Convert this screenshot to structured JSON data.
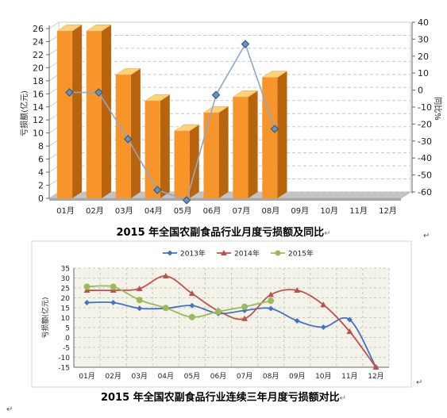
{
  "chart_data": [
    {
      "type": "bar",
      "categories": [
        "01月",
        "02月",
        "03月",
        "04月",
        "05月",
        "06月",
        "07月",
        "08月",
        "09月",
        "10月",
        "11月",
        "12月"
      ],
      "series": [
        {
          "name": "亏损额",
          "type": "bar",
          "axis": "left",
          "values": [
            25.6,
            25.6,
            18.9,
            14.9,
            10.3,
            13.1,
            15.5,
            18.5,
            null,
            null,
            null,
            null
          ]
        },
        {
          "name": "同比",
          "type": "line",
          "axis": "right",
          "values": [
            0.5,
            0.5,
            -27,
            -57,
            -63,
            -1,
            29,
            -21,
            null,
            null,
            null,
            null
          ]
        }
      ],
      "ylabel": "亏损额(亿元)",
      "ylabel_right": "同比%",
      "ylim": [
        0,
        26
      ],
      "yticks": [
        0,
        2,
        4,
        6,
        8,
        10,
        12,
        14,
        16,
        18,
        20,
        22,
        24,
        26
      ],
      "ylim_right": [
        -60,
        40
      ],
      "yticks_right": [
        40,
        30,
        20,
        10,
        0,
        -10,
        -20,
        -30,
        -40,
        -50,
        -60
      ],
      "grid": true,
      "colors": {
        "bar_front": "#F7952B",
        "bar_top": "#FFD27A",
        "bar_side": "#B8640F",
        "line": "#8FA8C8",
        "marker": "#2F5F8F",
        "grid": "#C8C8C8",
        "plot_bg": "#FFFFFF"
      }
    },
    {
      "type": "line",
      "categories": [
        "01月",
        "02月",
        "03月",
        "04月",
        "05月",
        "06月",
        "07月",
        "08月",
        "09月",
        "10月",
        "11月",
        "12月"
      ],
      "series": [
        {
          "name": "2013年",
          "color": "#4472C4",
          "marker": "diamond",
          "values": [
            17.6,
            17.6,
            14.7,
            14.7,
            16.1,
            12.1,
            13.6,
            14.6,
            8.4,
            5.2,
            9.0,
            -15.0
          ]
        },
        {
          "name": "2014年",
          "color": "#C0504D",
          "marker": "triangle",
          "values": [
            23.8,
            23.8,
            24.6,
            31.0,
            22.2,
            13.4,
            9.5,
            21.6,
            23.8,
            16.5,
            3.0,
            -15.0
          ]
        },
        {
          "name": "2015年",
          "color": "#9BBB59",
          "marker": "circle",
          "values": [
            25.6,
            25.6,
            18.9,
            14.9,
            10.3,
            13.1,
            15.5,
            18.5,
            null,
            null,
            null,
            null
          ]
        }
      ],
      "ylabel": "亏损额(亿元)",
      "ylim": [
        -15,
        35
      ],
      "yticks": [
        35,
        30,
        25,
        20,
        15,
        10,
        5,
        0,
        -5,
        -10,
        -15
      ],
      "grid": true,
      "legend": "top-center",
      "colors": {
        "plot_bg": "#F3F3E9",
        "grid": "#C9C9B8"
      }
    }
  ],
  "captions": {
    "chart1": "2015 年全国农副食品行业月度亏损额及同比",
    "chart2": "2015 年全国农副食品行业连续三年月度亏损额对比"
  },
  "marks": {
    "paragraph": "↵"
  }
}
